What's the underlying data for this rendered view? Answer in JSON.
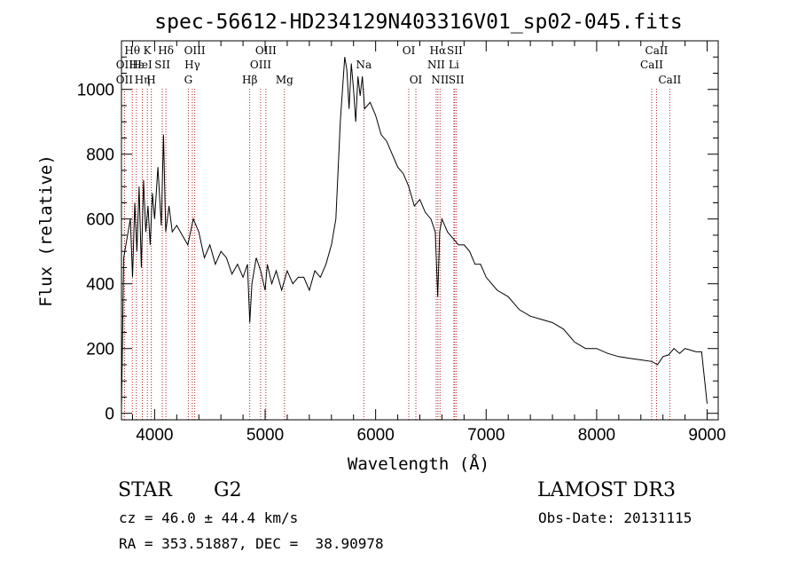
{
  "chart_data": {
    "type": "line",
    "title": "spec-56612-HD234129N403316V01_sp02-045.fits",
    "xlabel": "Wavelength (Å)",
    "ylabel": "Flux (relative)",
    "xlim": [
      3700,
      9100
    ],
    "ylim": [
      -20,
      1150
    ],
    "xticks": [
      4000,
      5000,
      6000,
      7000,
      8000,
      9000
    ],
    "yticks": [
      0,
      200,
      400,
      600,
      800,
      1000
    ],
    "grid": false,
    "line_color": "#000000",
    "marker_color": "#b22222",
    "series": [
      {
        "x": [
          3700,
          3720,
          3740,
          3760,
          3780,
          3800,
          3820,
          3840,
          3860,
          3880,
          3900,
          3920,
          3940,
          3960,
          3980,
          4000,
          4030,
          4060,
          4080,
          4100,
          4130,
          4160,
          4200,
          4250,
          4300,
          4350,
          4400,
          4450,
          4500,
          4550,
          4600,
          4650,
          4700,
          4750,
          4800,
          4840,
          4861,
          4880,
          4920,
          4960,
          5000,
          5020,
          5060,
          5100,
          5150,
          5200,
          5250,
          5300,
          5350,
          5400,
          5450,
          5500,
          5550,
          5600,
          5640,
          5660,
          5680,
          5700,
          5720,
          5740,
          5760,
          5780,
          5800,
          5820,
          5840,
          5860,
          5880,
          5900,
          5950,
          6000,
          6050,
          6100,
          6150,
          6200,
          6250,
          6300,
          6350,
          6400,
          6450,
          6500,
          6540,
          6562,
          6580,
          6600,
          6650,
          6700,
          6750,
          6800,
          6850,
          6900,
          6950,
          7000,
          7050,
          7100,
          7200,
          7300,
          7400,
          7500,
          7600,
          7700,
          7800,
          7900,
          8000,
          8100,
          8200,
          8300,
          8400,
          8500,
          8550,
          8600,
          8650,
          8700,
          8750,
          8800,
          8850,
          8900,
          8950,
          9000
        ],
        "values": [
          10,
          480,
          520,
          560,
          600,
          420,
          650,
          500,
          700,
          450,
          720,
          560,
          640,
          520,
          680,
          600,
          760,
          580,
          860,
          560,
          640,
          560,
          580,
          550,
          520,
          600,
          560,
          480,
          520,
          460,
          500,
          480,
          430,
          460,
          420,
          460,
          280,
          400,
          480,
          440,
          380,
          460,
          400,
          440,
          380,
          440,
          400,
          420,
          420,
          380,
          440,
          420,
          460,
          520,
          600,
          750,
          900,
          1000,
          1100,
          1060,
          940,
          1080,
          1000,
          900,
          1040,
          980,
          1040,
          940,
          960,
          920,
          860,
          840,
          800,
          760,
          740,
          700,
          640,
          660,
          620,
          600,
          560,
          360,
          560,
          600,
          560,
          540,
          520,
          520,
          500,
          460,
          460,
          420,
          400,
          380,
          360,
          320,
          300,
          290,
          280,
          260,
          220,
          200,
          200,
          185,
          175,
          170,
          165,
          160,
          150,
          175,
          180,
          200,
          185,
          200,
          195,
          190,
          190,
          30
        ]
      }
    ],
    "line_markers": [
      {
        "name": "Hθ",
        "x": 3798,
        "row": 0
      },
      {
        "name": "OII",
        "x": 3727,
        "row": 1
      },
      {
        "name": "OII",
        "x": 3727,
        "row": 2
      },
      {
        "name": "Hε",
        "x": 3835,
        "row": 1
      },
      {
        "name": "Hη",
        "x": 3889,
        "row": 2
      },
      {
        "name": "K",
        "x": 3934,
        "row": 0
      },
      {
        "name": "HeI",
        "x": 3889,
        "row": 1
      },
      {
        "name": "SII",
        "x": 4070,
        "row": 1
      },
      {
        "name": "H",
        "x": 3969,
        "row": 2
      },
      {
        "name": "Hδ",
        "x": 4102,
        "row": 0
      },
      {
        "name": "OIII",
        "x": 4363,
        "row": 0
      },
      {
        "name": "Hγ",
        "x": 4341,
        "row": 1
      },
      {
        "name": "G",
        "x": 4305,
        "row": 2
      },
      {
        "name": "Hβ",
        "x": 4861,
        "row": 2
      },
      {
        "name": "OIII",
        "x": 5007,
        "row": 0
      },
      {
        "name": "OIII",
        "x": 4959,
        "row": 1
      },
      {
        "name": "Mg",
        "x": 5175,
        "row": 2
      },
      {
        "name": "Na",
        "x": 5893,
        "row": 1
      },
      {
        "name": "OI",
        "x": 6300,
        "row": 0
      },
      {
        "name": "OI",
        "x": 6364,
        "row": 2
      },
      {
        "name": "Hα",
        "x": 6563,
        "row": 0
      },
      {
        "name": "NII",
        "x": 6548,
        "row": 1
      },
      {
        "name": "NII",
        "x": 6583,
        "row": 2
      },
      {
        "name": "SII",
        "x": 6716,
        "row": 0
      },
      {
        "name": "Li",
        "x": 6708,
        "row": 1
      },
      {
        "name": "SII",
        "x": 6731,
        "row": 2
      },
      {
        "name": "CaII",
        "x": 8542,
        "row": 0
      },
      {
        "name": "CaII",
        "x": 8498,
        "row": 1
      },
      {
        "name": "CaII",
        "x": 8662,
        "row": 2
      }
    ]
  },
  "info": {
    "object_type": "STAR",
    "subclass": "G2",
    "cz": "cz = 46.0 ± 44.4 km/s",
    "coords": "RA = 353.51887, DEC =  38.90978",
    "survey": "LAMOST DR3",
    "obs_date": "Obs-Date: 20131115"
  }
}
